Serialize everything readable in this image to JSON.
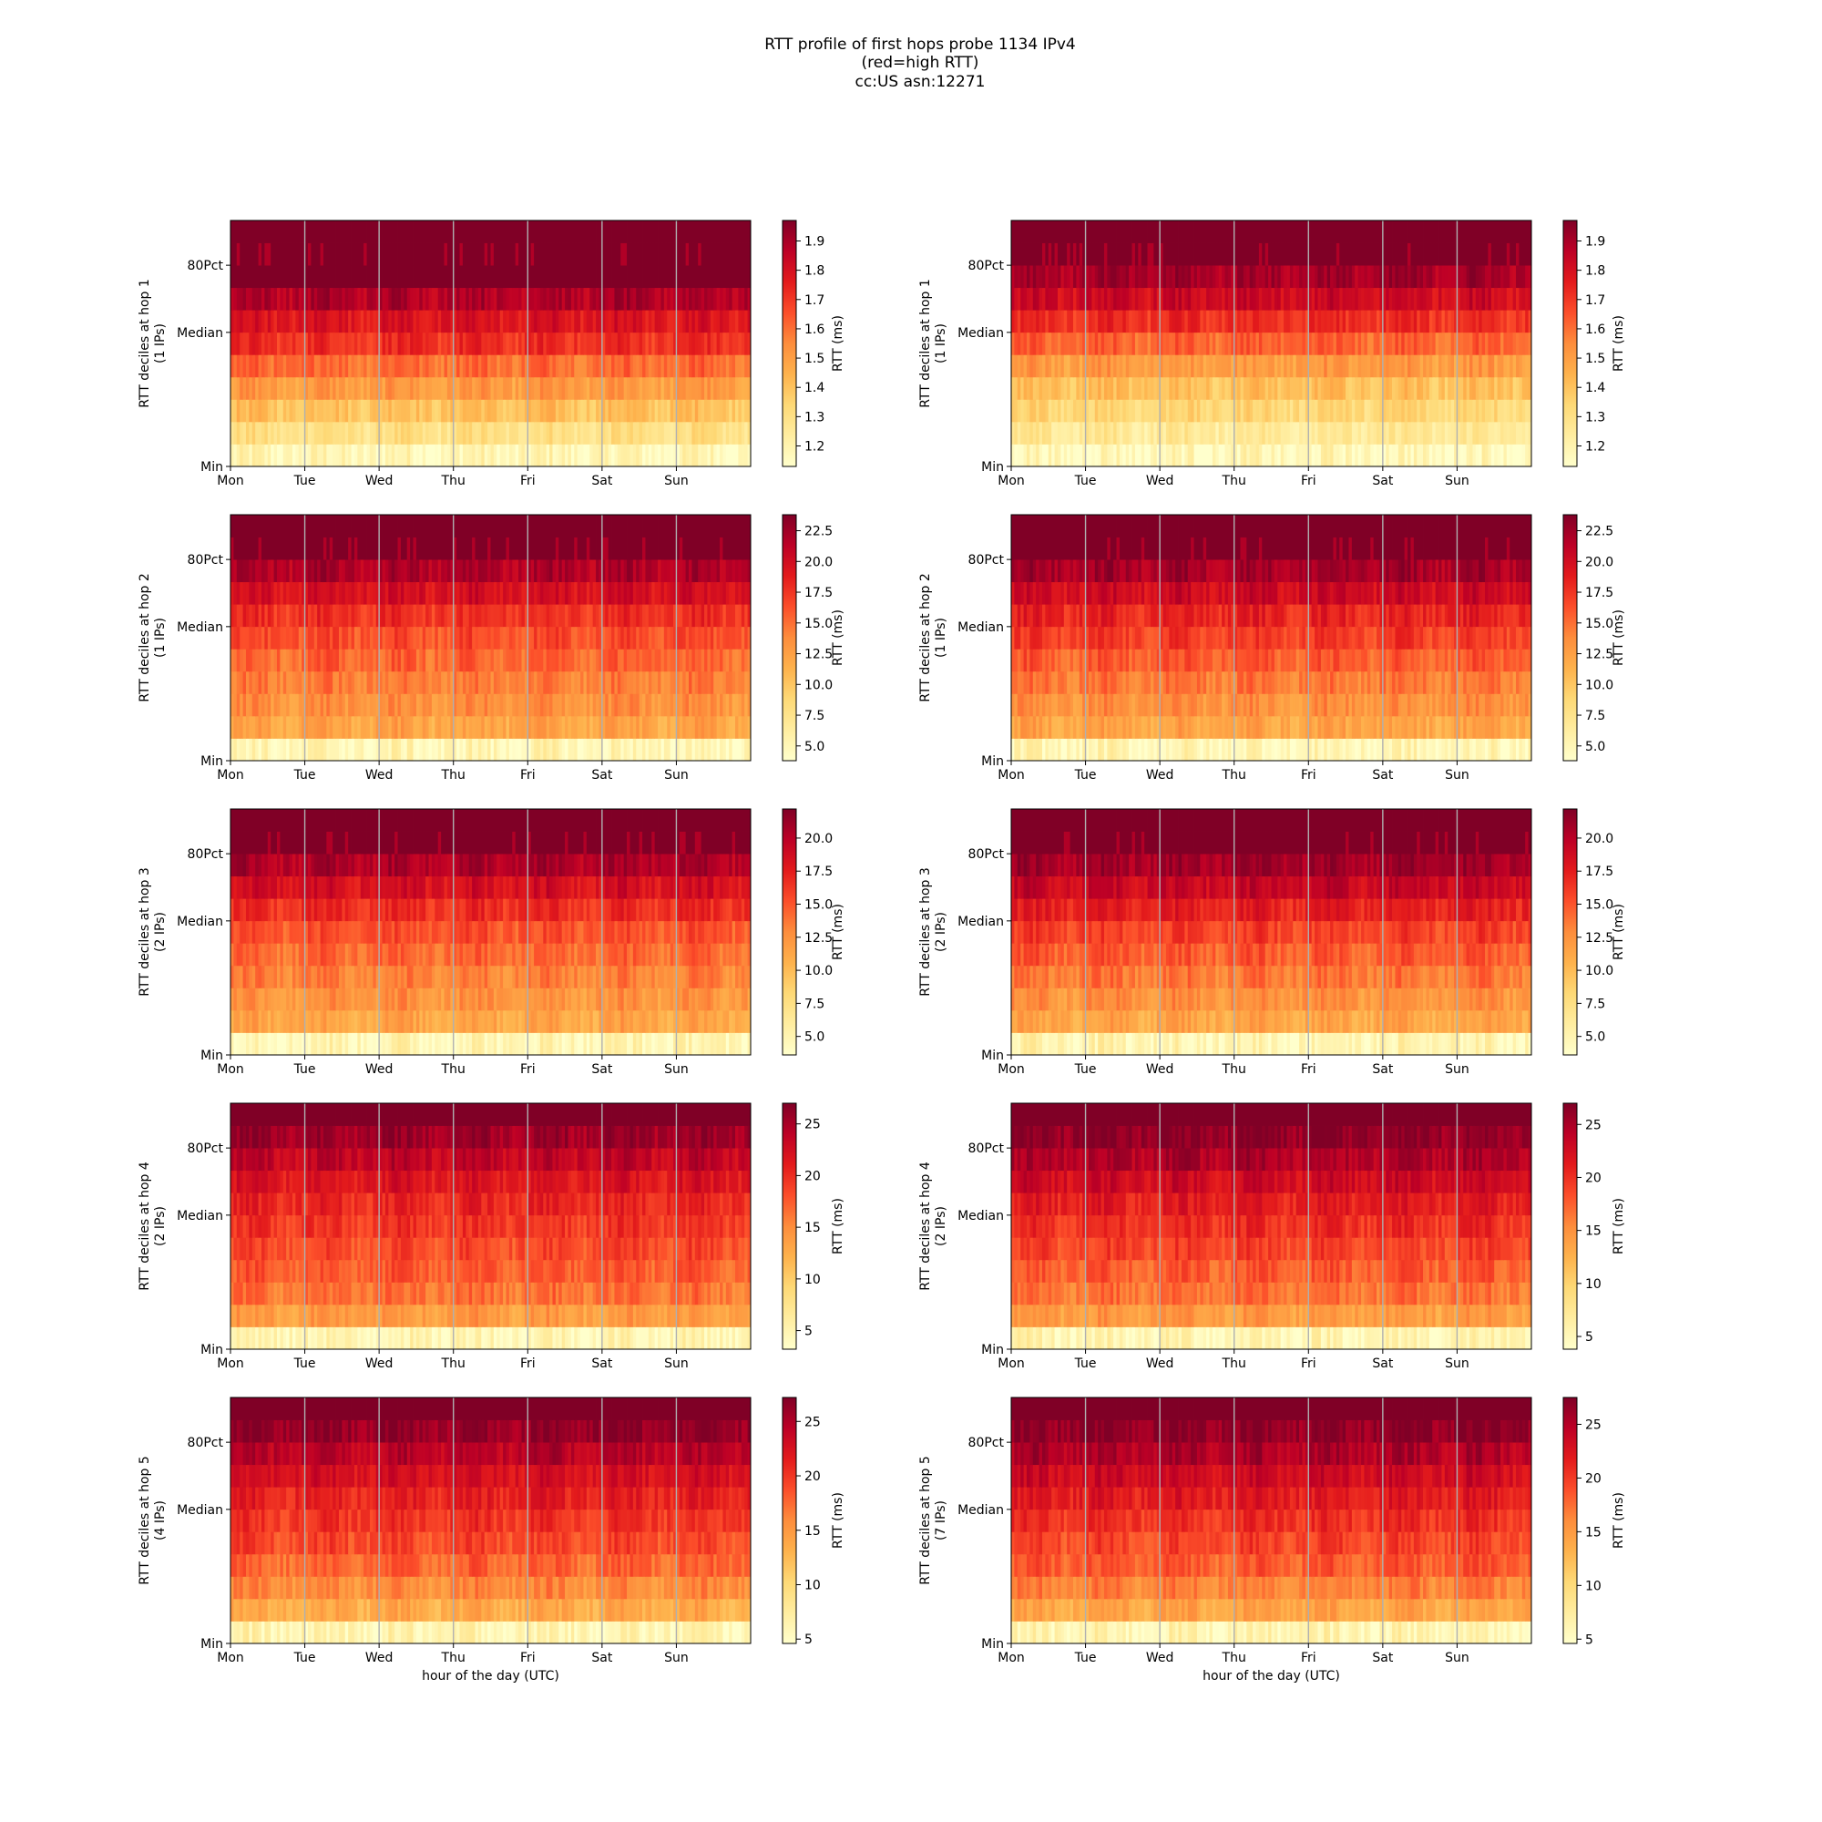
{
  "figure": {
    "title_lines": [
      "RTT profile of first hops probe 1134 IPv4",
      "(red=high RTT)",
      "cc:US asn:12271"
    ]
  },
  "colormap": "YlOrRd",
  "colormap_stops": [
    "#ffffcc",
    "#ffeda0",
    "#fed976",
    "#feb24c",
    "#fd8d3c",
    "#fc4e2a",
    "#e31a1c",
    "#bd0026",
    "#800026"
  ],
  "gridline_color": "#b0b0b0",
  "chart_data": [
    {
      "type": "heatmap",
      "hop_label": "RTT deciles at hop 1",
      "ips_label": "(1 IPs)",
      "xlabel": "",
      "x_ticks": [
        "Mon",
        "Tue",
        "Wed",
        "Thu",
        "Fri",
        "Sat",
        "Sun"
      ],
      "y_ticks": [
        "Min",
        "Median",
        "80Pct"
      ],
      "colorbar": {
        "label": "RTT (ms)",
        "min": 1.13,
        "max": 1.97,
        "ticks": [
          1.2,
          1.3,
          1.4,
          1.5,
          1.6,
          1.7,
          1.8,
          1.9
        ],
        "tick_labels": [
          "1.2",
          "1.3",
          "1.4",
          "1.5",
          "1.6",
          "1.7",
          "1.8",
          "1.9"
        ]
      },
      "decile_levels": [
        0.06,
        0.2,
        0.33,
        0.45,
        0.57,
        0.7,
        0.78,
        0.9,
        1.0,
        1.0,
        1.0
      ]
    },
    {
      "type": "heatmap",
      "hop_label": "RTT deciles at hop 1",
      "ips_label": "(1 IPs)",
      "xlabel": "",
      "x_ticks": [
        "Mon",
        "Tue",
        "Wed",
        "Thu",
        "Fri",
        "Sat",
        "Sun"
      ],
      "y_ticks": [
        "Min",
        "Median",
        "80Pct"
      ],
      "colorbar": {
        "label": "RTT (ms)",
        "min": 1.13,
        "max": 1.97,
        "ticks": [
          1.2,
          1.3,
          1.4,
          1.5,
          1.6,
          1.7,
          1.8,
          1.9
        ],
        "tick_labels": [
          "1.2",
          "1.3",
          "1.4",
          "1.5",
          "1.6",
          "1.7",
          "1.8",
          "1.9"
        ]
      },
      "decile_levels": [
        0.05,
        0.15,
        0.25,
        0.33,
        0.45,
        0.58,
        0.7,
        0.82,
        0.92,
        1.0,
        1.0
      ]
    },
    {
      "type": "heatmap",
      "hop_label": "RTT deciles at hop 2",
      "ips_label": "(1 IPs)",
      "xlabel": "",
      "x_ticks": [
        "Mon",
        "Tue",
        "Wed",
        "Thu",
        "Fri",
        "Sat",
        "Sun"
      ],
      "y_ticks": [
        "Min",
        "Median",
        "80Pct"
      ],
      "colorbar": {
        "label": "RTT (ms)",
        "min": 3.8,
        "max": 23.8,
        "ticks": [
          5,
          7.5,
          10,
          12.5,
          15,
          17.5,
          20,
          22.5
        ],
        "tick_labels": [
          "5.0",
          "7.5",
          "10.0",
          "12.5",
          "15.0",
          "17.5",
          "20.0",
          "22.5"
        ]
      },
      "decile_levels": [
        0.06,
        0.42,
        0.48,
        0.53,
        0.58,
        0.63,
        0.7,
        0.8,
        0.9,
        1.0,
        1.0
      ]
    },
    {
      "type": "heatmap",
      "hop_label": "RTT deciles at hop 2",
      "ips_label": "(1 IPs)",
      "xlabel": "",
      "x_ticks": [
        "Mon",
        "Tue",
        "Wed",
        "Thu",
        "Fri",
        "Sat",
        "Sun"
      ],
      "y_ticks": [
        "Min",
        "Median",
        "80Pct"
      ],
      "colorbar": {
        "label": "RTT (ms)",
        "min": 3.8,
        "max": 23.8,
        "ticks": [
          5,
          7.5,
          10,
          12.5,
          15,
          17.5,
          20,
          22.5
        ],
        "tick_labels": [
          "5.0",
          "7.5",
          "10.0",
          "12.5",
          "15.0",
          "17.5",
          "20.0",
          "22.5"
        ]
      },
      "decile_levels": [
        0.06,
        0.42,
        0.48,
        0.54,
        0.6,
        0.66,
        0.73,
        0.82,
        0.92,
        1.0,
        1.0
      ]
    },
    {
      "type": "heatmap",
      "hop_label": "RTT deciles at hop 3",
      "ips_label": "(2 IPs)",
      "xlabel": "",
      "x_ticks": [
        "Mon",
        "Tue",
        "Wed",
        "Thu",
        "Fri",
        "Sat",
        "Sun"
      ],
      "y_ticks": [
        "Min",
        "Median",
        "80Pct"
      ],
      "colorbar": {
        "label": "RTT (ms)",
        "min": 3.6,
        "max": 22.2,
        "ticks": [
          5,
          7.5,
          10,
          12.5,
          15,
          17.5,
          20
        ],
        "tick_labels": [
          "5.0",
          "7.5",
          "10.0",
          "12.5",
          "15.0",
          "17.5",
          "20.0"
        ]
      },
      "decile_levels": [
        0.07,
        0.42,
        0.47,
        0.52,
        0.57,
        0.62,
        0.7,
        0.8,
        0.9,
        1.0,
        1.0
      ]
    },
    {
      "type": "heatmap",
      "hop_label": "RTT deciles at hop 3",
      "ips_label": "(2 IPs)",
      "xlabel": "",
      "x_ticks": [
        "Mon",
        "Tue",
        "Wed",
        "Thu",
        "Fri",
        "Sat",
        "Sun"
      ],
      "y_ticks": [
        "Min",
        "Median",
        "80Pct"
      ],
      "colorbar": {
        "label": "RTT (ms)",
        "min": 3.6,
        "max": 22.2,
        "ticks": [
          5,
          7.5,
          10,
          12.5,
          15,
          17.5,
          20
        ],
        "tick_labels": [
          "5.0",
          "7.5",
          "10.0",
          "12.5",
          "15.0",
          "17.5",
          "20.0"
        ]
      },
      "decile_levels": [
        0.07,
        0.42,
        0.48,
        0.54,
        0.6,
        0.66,
        0.74,
        0.84,
        0.93,
        1.0,
        1.0
      ]
    },
    {
      "type": "heatmap",
      "hop_label": "RTT deciles at hop 4",
      "ips_label": "(2 IPs)",
      "xlabel": "",
      "x_ticks": [
        "Mon",
        "Tue",
        "Wed",
        "Thu",
        "Fri",
        "Sat",
        "Sun"
      ],
      "y_ticks": [
        "Min",
        "Median",
        "80Pct"
      ],
      "colorbar": {
        "label": "RTT (ms)",
        "min": 3.2,
        "max": 27.0,
        "ticks": [
          5,
          10,
          15,
          20,
          25
        ],
        "tick_labels": [
          "5",
          "10",
          "15",
          "20",
          "25"
        ]
      },
      "decile_levels": [
        0.07,
        0.45,
        0.55,
        0.6,
        0.64,
        0.68,
        0.72,
        0.78,
        0.86,
        0.94,
        1.0
      ]
    },
    {
      "type": "heatmap",
      "hop_label": "RTT deciles at hop 4",
      "ips_label": "(2 IPs)",
      "xlabel": "",
      "x_ticks": [
        "Mon",
        "Tue",
        "Wed",
        "Thu",
        "Fri",
        "Sat",
        "Sun"
      ],
      "y_ticks": [
        "Min",
        "Median",
        "80Pct"
      ],
      "colorbar": {
        "label": "RTT (ms)",
        "min": 3.8,
        "max": 27.0,
        "ticks": [
          5,
          10,
          15,
          20,
          25
        ],
        "tick_labels": [
          "5",
          "10",
          "15",
          "20",
          "25"
        ]
      },
      "decile_levels": [
        0.07,
        0.45,
        0.55,
        0.6,
        0.65,
        0.7,
        0.75,
        0.82,
        0.9,
        0.97,
        1.0
      ]
    },
    {
      "type": "heatmap",
      "hop_label": "RTT deciles at hop 5",
      "ips_label": "(4 IPs)",
      "xlabel": "hour of the day (UTC)",
      "x_ticks": [
        "Mon",
        "Tue",
        "Wed",
        "Thu",
        "Fri",
        "Sat",
        "Sun"
      ],
      "y_ticks": [
        "Min",
        "Median",
        "80Pct"
      ],
      "colorbar": {
        "label": "RTT (ms)",
        "min": 4.6,
        "max": 27.2,
        "ticks": [
          5,
          10,
          15,
          20,
          25
        ],
        "tick_labels": [
          "5",
          "10",
          "15",
          "20",
          "25"
        ]
      },
      "decile_levels": [
        0.07,
        0.4,
        0.5,
        0.58,
        0.64,
        0.69,
        0.74,
        0.8,
        0.88,
        0.96,
        1.0
      ]
    },
    {
      "type": "heatmap",
      "hop_label": "RTT deciles at hop 5",
      "ips_label": "(7 IPs)",
      "xlabel": "hour of the day (UTC)",
      "x_ticks": [
        "Mon",
        "Tue",
        "Wed",
        "Thu",
        "Fri",
        "Sat",
        "Sun"
      ],
      "y_ticks": [
        "Min",
        "Median",
        "80Pct"
      ],
      "colorbar": {
        "label": "RTT (ms)",
        "min": 4.6,
        "max": 27.5,
        "ticks": [
          5,
          10,
          15,
          20,
          25
        ],
        "tick_labels": [
          "5",
          "10",
          "15",
          "20",
          "25"
        ]
      },
      "decile_levels": [
        0.07,
        0.42,
        0.52,
        0.6,
        0.65,
        0.7,
        0.76,
        0.82,
        0.9,
        0.97,
        1.0
      ]
    }
  ]
}
